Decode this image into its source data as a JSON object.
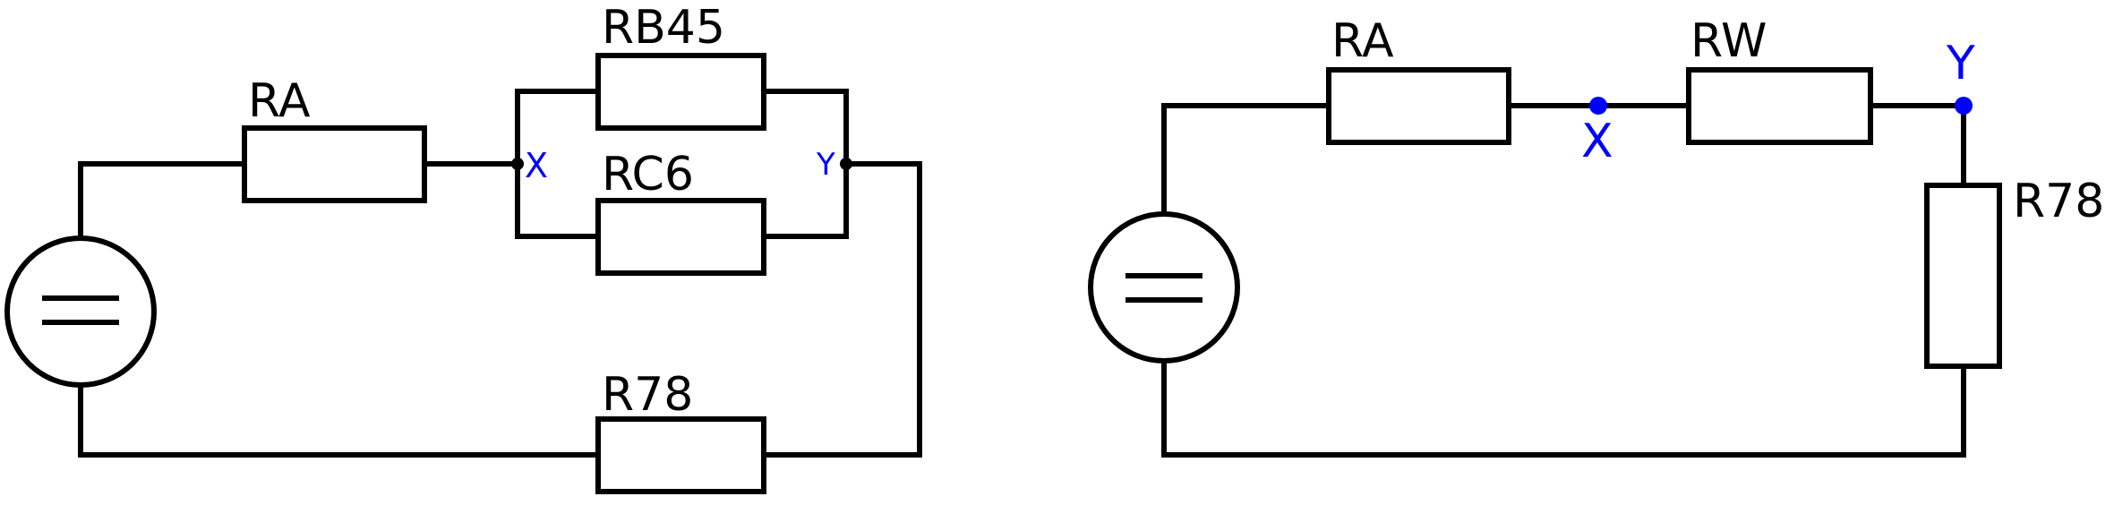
{
  "circuit_left": {
    "labels": {
      "ra": "RA",
      "rb45": "RB45",
      "rc6": "RC6",
      "r78": "R78"
    },
    "nodes": {
      "x": "X",
      "y": "Y"
    }
  },
  "circuit_right": {
    "labels": {
      "ra": "RA",
      "rw": "RW",
      "r78": "R78"
    },
    "nodes": {
      "x": "X",
      "y": "Y"
    }
  },
  "colors": {
    "wire": "#000000",
    "node_label": "#0000ff"
  }
}
